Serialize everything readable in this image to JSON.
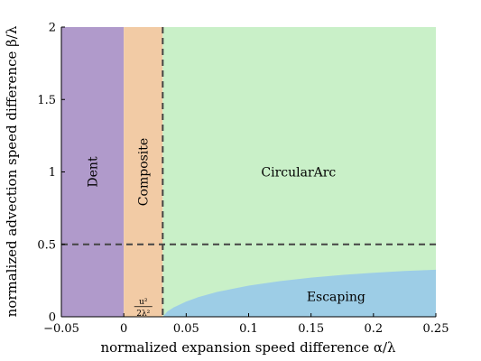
{
  "chart_data": {
    "type": "area",
    "xlabel": "normalized expansion speed difference α/λ",
    "ylabel": "normalized advection speed difference β/λ",
    "xlim": [
      -0.05,
      0.25
    ],
    "ylim": [
      0,
      2
    ],
    "x_ticks": [
      {
        "value": -0.05,
        "label": "−0.05"
      },
      {
        "value": 0,
        "label": "0"
      },
      {
        "value": 0.05,
        "label": "0.05"
      },
      {
        "value": 0.1,
        "label": "0.1"
      },
      {
        "value": 0.15,
        "label": "0.15"
      },
      {
        "value": 0.2,
        "label": "0.2"
      },
      {
        "value": 0.25,
        "label": "0.25"
      }
    ],
    "y_ticks": [
      {
        "value": 0,
        "label": "0"
      },
      {
        "value": 0.5,
        "label": "0.5"
      },
      {
        "value": 1,
        "label": "1"
      },
      {
        "value": 1.5,
        "label": "1.5"
      },
      {
        "value": 2,
        "label": "2"
      }
    ],
    "grid": false,
    "regions": [
      {
        "name": "Dent",
        "x_range": [
          -0.05,
          0
        ],
        "color": "#b09acb"
      },
      {
        "name": "Composite",
        "x_range": [
          0,
          0.0312
        ],
        "color": "#f2cba5"
      },
      {
        "name": "CircularArc",
        "x_range": [
          0.0312,
          0.25
        ],
        "color": "#c9f0c8"
      },
      {
        "name": "Escaping",
        "color": "#9dcde6"
      }
    ],
    "escaping_boundary": {
      "x": [
        0.0312,
        0.035,
        0.04,
        0.05,
        0.06,
        0.075,
        0.1,
        0.125,
        0.15,
        0.175,
        0.2,
        0.225,
        0.25
      ],
      "y": [
        0,
        0.037,
        0.065,
        0.105,
        0.136,
        0.172,
        0.215,
        0.246,
        0.27,
        0.289,
        0.304,
        0.316,
        0.325
      ]
    },
    "dashed_lines": [
      {
        "orientation": "vertical",
        "value": 0.0312
      },
      {
        "orientation": "horizontal",
        "value": 0.5
      }
    ],
    "annotation_label": "u²_b / 2λ²",
    "annotation_x": 0.0156,
    "annotation_y": 0.07
  }
}
